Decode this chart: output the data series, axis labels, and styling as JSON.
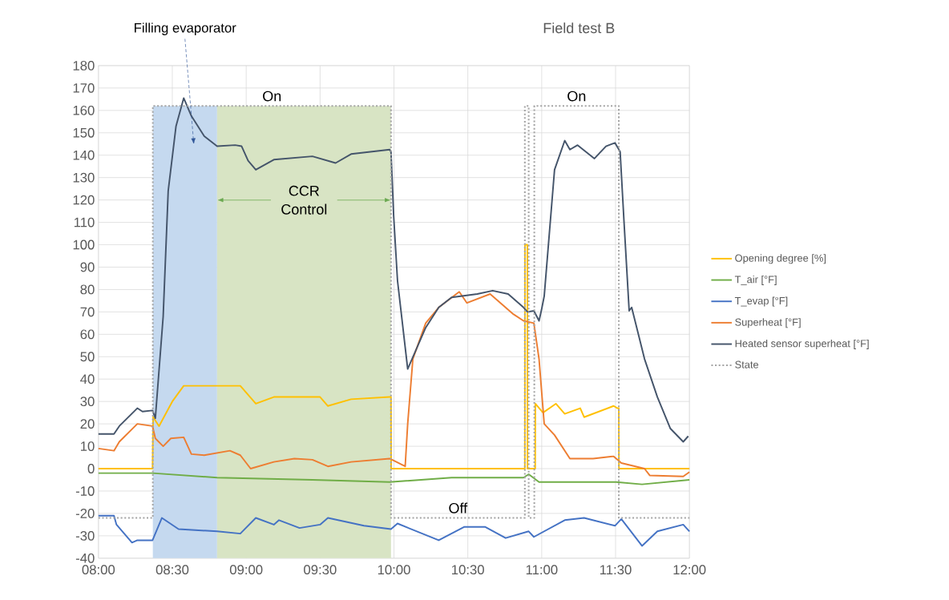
{
  "chart_data": {
    "type": "line",
    "title": "Field test B",
    "xlim": [
      8,
      12
    ],
    "ylim": [
      -40,
      180
    ],
    "xticks": [
      {
        "value": 8,
        "label": "08:00"
      },
      {
        "value": 8.5,
        "label": "08:30"
      },
      {
        "value": 9,
        "label": "09:00"
      },
      {
        "value": 9.5,
        "label": "09:30"
      },
      {
        "value": 10,
        "label": "10:00"
      },
      {
        "value": 10.5,
        "label": "10:30"
      },
      {
        "value": 11,
        "label": "11:00"
      },
      {
        "value": 11.5,
        "label": "11:30"
      },
      {
        "value": 12,
        "label": "12:00"
      }
    ],
    "yticks": [
      -40,
      -30,
      -20,
      -10,
      0,
      10,
      20,
      30,
      40,
      50,
      60,
      70,
      80,
      90,
      100,
      110,
      120,
      130,
      140,
      150,
      160,
      170,
      180
    ],
    "grid": true,
    "legend": "right",
    "bands": [
      {
        "axis": "x",
        "from": 8.368,
        "to": 8.803,
        "label": "Filling evaporator",
        "color": "#c5d9ef"
      },
      {
        "axis": "x",
        "from": 8.803,
        "to": 9.98,
        "label": "CCR Control",
        "color": "#d8e4c4"
      }
    ],
    "annotations": [
      "On",
      "Off",
      "On"
    ],
    "series": [
      {
        "name": "Opening degree [%]",
        "color": "#ffc000",
        "x": [
          8,
          8.366,
          8.37,
          8.41,
          8.5,
          8.577,
          8.803,
          8.96,
          9.065,
          9.187,
          9.361,
          9.5,
          9.553,
          9.71,
          9.971,
          9.98,
          9.981,
          10.886,
          10.887,
          10.903,
          10.904,
          10.956,
          10.957,
          11.009,
          11.096,
          11.156,
          11.261,
          11.287,
          11.487,
          11.513,
          11.522,
          11.523,
          12
        ],
        "values": [
          0,
          0,
          23,
          19,
          30,
          37,
          37,
          37,
          29,
          32,
          32,
          32,
          28,
          31,
          32,
          32,
          0,
          0,
          100,
          100,
          0,
          0,
          29,
          25,
          29,
          24.5,
          27,
          23,
          28,
          27,
          27,
          0,
          0
        ]
      },
      {
        "name": "T_air [°F]",
        "color": "#70ad47",
        "x": [
          8,
          8.366,
          8.803,
          9.448,
          9.971,
          10.39,
          10.877,
          10.912,
          10.982,
          11.504,
          11.679,
          12
        ],
        "values": [
          -2,
          -2,
          -4,
          -5,
          -6,
          -4,
          -4,
          -2.5,
          -6,
          -6,
          -7,
          -5
        ]
      },
      {
        "name": "T_evap [°F]",
        "color": "#4472c4",
        "x": [
          8,
          8.105,
          8.122,
          8.227,
          8.263,
          8.366,
          8.429,
          8.542,
          8.803,
          8.96,
          9.065,
          9.187,
          9.222,
          9.361,
          9.5,
          9.553,
          9.797,
          9.98,
          10.024,
          10.303,
          10.477,
          10.616,
          10.756,
          10.912,
          10.947,
          11.156,
          11.287,
          11.496,
          11.539,
          11.679,
          11.783,
          11.958,
          12
        ],
        "values": [
          -21,
          -21,
          -25,
          -33,
          -32,
          -32,
          -22,
          -27,
          -28,
          -29,
          -22,
          -25,
          -23,
          -26.5,
          -25,
          -22,
          -25.5,
          -27,
          -24.5,
          -32,
          -26,
          -26,
          -31,
          -28,
          -30.5,
          -23,
          -22,
          -25.5,
          -22.5,
          -34.5,
          -28,
          -25,
          -28
        ]
      },
      {
        "name": "Superheat [°F]",
        "color": "#ed7d31",
        "x": [
          8,
          8.105,
          8.141,
          8.263,
          8.366,
          8.385,
          8.438,
          8.49,
          8.577,
          8.629,
          8.716,
          8.89,
          8.96,
          9.03,
          9.187,
          9.326,
          9.448,
          9.553,
          9.71,
          9.971,
          10.076,
          10.093,
          10.128,
          10.215,
          10.303,
          10.442,
          10.494,
          10.651,
          10.808,
          10.877,
          10.947,
          10.982,
          11.017,
          11.087,
          11.191,
          11.348,
          11.487,
          11.539,
          11.696,
          11.731,
          11.958,
          12
        ],
        "values": [
          9,
          8,
          12,
          20,
          19,
          13.5,
          10,
          13.5,
          14,
          6.5,
          6,
          8,
          6,
          0,
          3,
          4.5,
          4,
          1,
          3,
          4.5,
          1,
          20,
          49,
          65,
          72,
          79,
          74,
          78,
          69,
          66,
          65,
          49,
          20,
          15,
          4.5,
          4.5,
          5.5,
          2.5,
          0,
          -3,
          -3.5,
          -1.5
        ]
      },
      {
        "name": "Heated sensor superheat [°F]",
        "color": "#44546a",
        "x": [
          8,
          8.105,
          8.141,
          8.263,
          8.298,
          8.366,
          8.385,
          8.438,
          8.472,
          8.525,
          8.577,
          8.629,
          8.716,
          8.803,
          8.925,
          8.969,
          9.013,
          9.065,
          9.187,
          9.448,
          9.605,
          9.71,
          9.971,
          9.98,
          9.998,
          10.024,
          10.093,
          10.215,
          10.303,
          10.39,
          10.564,
          10.668,
          10.773,
          10.877,
          10.904,
          10.947,
          10.982,
          10.999,
          11.017,
          11.087,
          11.156,
          11.191,
          11.243,
          11.357,
          11.435,
          11.496,
          11.531,
          11.557,
          11.592,
          11.609,
          11.696,
          11.783,
          11.87,
          11.958,
          11.992
        ],
        "values": [
          15.5,
          15.5,
          19,
          27,
          25.5,
          26,
          22.5,
          68,
          124,
          153,
          165.5,
          157.5,
          148.5,
          144,
          144.5,
          144,
          137.5,
          133.5,
          138,
          139.5,
          136.5,
          140.5,
          142.5,
          141.5,
          113,
          84,
          44.5,
          63,
          72,
          76.5,
          78,
          79.5,
          78,
          72,
          70,
          70.5,
          66,
          71,
          77,
          133.5,
          146.5,
          142.5,
          144.5,
          138.5,
          144,
          145.5,
          141.5,
          110.5,
          70.5,
          72,
          49,
          32,
          18,
          12,
          14.5
        ]
      },
      {
        "name": "State",
        "color": "#a5a5a5",
        "type": "step",
        "line_style": "dotted",
        "x": [
          8,
          8.368,
          9.98,
          10.886,
          10.912,
          10.95,
          11.522,
          12
        ],
        "values": [
          -22,
          162,
          -22,
          162,
          -22,
          162,
          -22,
          -22
        ]
      }
    ]
  }
}
